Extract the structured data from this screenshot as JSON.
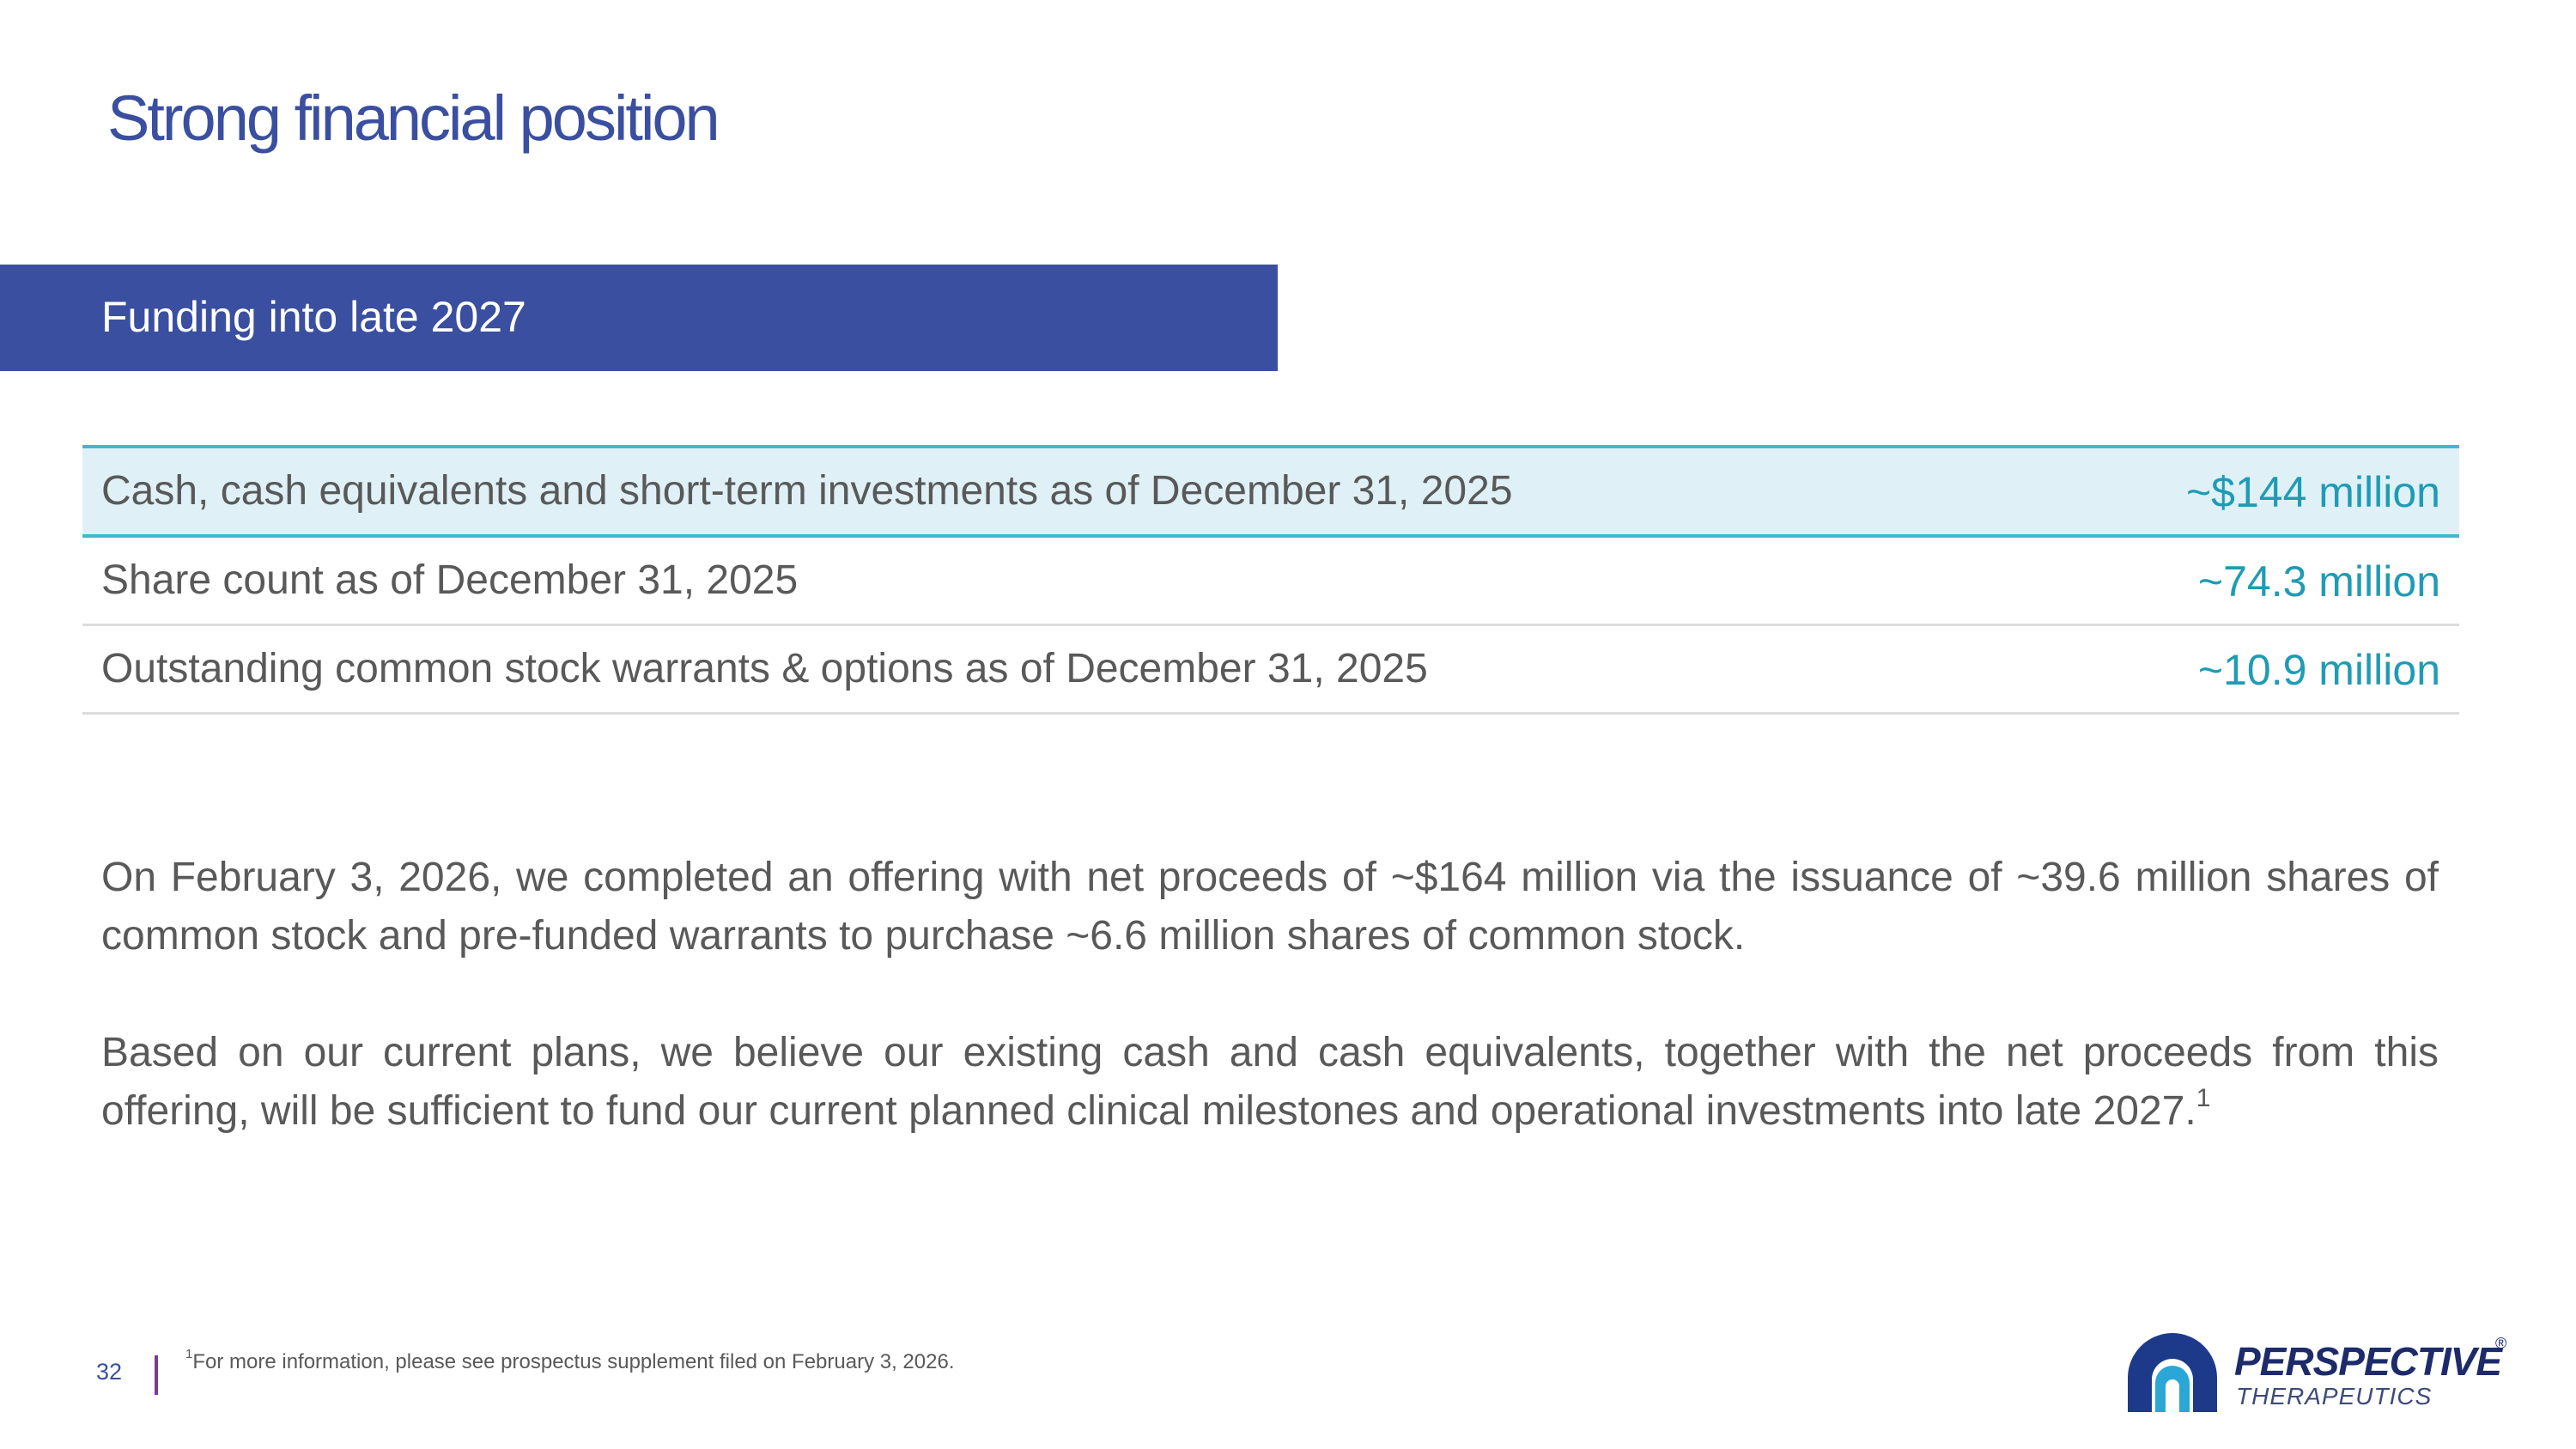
{
  "slide": {
    "title": "Strong financial position",
    "banner": "Funding into late 2027",
    "page_number": "32"
  },
  "table": {
    "rows": [
      {
        "label": "Cash, cash equivalents and short-term investments as of December 31, 2025",
        "value": "~$144 million"
      },
      {
        "label": "Share count as of December 31, 2025",
        "value": "~74.3 million"
      },
      {
        "label": "Outstanding common stock warrants & options as of December 31, 2025",
        "value": "~10.9 million"
      }
    ]
  },
  "body": {
    "paragraph1": "On February 3, 2026, we completed an offering with net proceeds of ~$164 million via the issuance of ~39.6 million shares of common stock and pre-funded warrants to purchase ~6.6 million shares of common stock.",
    "paragraph2": "Based on our current plans, we believe our existing cash and cash equivalents, together with the net proceeds from this offering, will be sufficient to fund our current planned clinical milestones and operational investments into late 2027.",
    "paragraph2_footnote_ref": "1"
  },
  "footer": {
    "footnote_marker": "1",
    "footnote_text": "For more information, please see prospectus supplement filed on February 3, 2026."
  },
  "logo": {
    "name": "PERSPECTIVE",
    "subtitle": "THERAPEUTICS",
    "registered_mark": "®"
  },
  "colors": {
    "title_blue": "#3a4fa0",
    "banner_blue": "#3a4fa0",
    "highlight_fill": "#dff1f7",
    "highlight_border": "#3fb8d0",
    "value_teal": "#1f9bb5",
    "body_text": "#595959",
    "divider_purple": "#7a3b8f"
  }
}
